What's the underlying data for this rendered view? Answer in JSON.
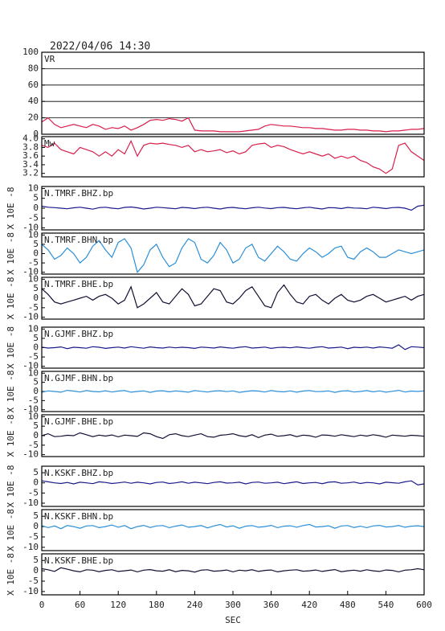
{
  "chart_data": {
    "type": "line",
    "title": "2022/04/06  14:30",
    "xlabel": "SEC",
    "x": [
      0,
      10,
      20,
      30,
      40,
      50,
      60,
      70,
      80,
      90,
      100,
      110,
      120,
      130,
      140,
      150,
      160,
      170,
      180,
      190,
      200,
      210,
      220,
      230,
      240,
      250,
      260,
      270,
      280,
      290,
      300,
      310,
      320,
      330,
      340,
      350,
      360,
      370,
      380,
      390,
      400,
      410,
      420,
      430,
      440,
      450,
      460,
      470,
      480,
      490,
      500,
      510,
      520,
      530,
      540,
      550,
      560,
      570,
      580,
      590,
      600
    ],
    "xlim": [
      0,
      600
    ],
    "xticks": [
      0,
      60,
      120,
      180,
      240,
      300,
      360,
      420,
      480,
      540,
      600
    ],
    "series": [
      {
        "name": "VR",
        "color": "#d81e4a",
        "ylim": [
          0,
          100
        ],
        "yticks": [
          0,
          20,
          40,
          60,
          80,
          100
        ],
        "grid": true,
        "values": [
          15,
          20,
          12,
          8,
          10,
          12,
          10,
          8,
          12,
          10,
          6,
          8,
          7,
          10,
          5,
          8,
          12,
          17,
          18,
          17,
          19,
          18,
          16,
          20,
          5,
          4,
          4,
          4,
          3,
          3,
          3,
          3,
          4,
          5,
          6,
          10,
          12,
          11,
          10,
          10,
          9,
          8,
          8,
          7,
          7,
          6,
          5,
          5,
          6,
          6,
          5,
          5,
          4,
          4,
          3,
          4,
          4,
          5,
          6,
          6,
          7
        ]
      },
      {
        "name": "Mw",
        "color": "#d81e4a",
        "ylim": [
          3.12,
          4.05
        ],
        "yticks": [
          3.2,
          3.4,
          3.6,
          3.8,
          {
            "value": 4,
            "label": "4.0"
          }
        ],
        "grid": false,
        "values": [
          3.85,
          3.8,
          3.9,
          3.75,
          3.7,
          3.65,
          3.8,
          3.75,
          3.7,
          3.6,
          3.7,
          3.6,
          3.75,
          3.65,
          3.95,
          3.6,
          3.85,
          3.9,
          3.88,
          3.9,
          3.87,
          3.85,
          3.8,
          3.85,
          3.7,
          3.75,
          3.7,
          3.72,
          3.75,
          3.68,
          3.72,
          3.65,
          3.7,
          3.85,
          3.88,
          3.9,
          3.8,
          3.85,
          3.82,
          3.75,
          3.7,
          3.65,
          3.7,
          3.65,
          3.6,
          3.65,
          3.55,
          3.6,
          3.55,
          3.6,
          3.5,
          3.45,
          3.35,
          3.3,
          3.2,
          3.3,
          3.85,
          3.9,
          3.7,
          3.6,
          3.5
        ]
      },
      {
        "name": "N.TMRF.BHZ.bp",
        "ylabel": "X 10E -8",
        "color": "#1a1a8c",
        "ylim": [
          -11,
          11
        ],
        "yticks": [
          -10,
          -5,
          0,
          5,
          10
        ],
        "grid": false,
        "values": [
          1,
          0.5,
          0.3,
          0,
          -0.3,
          0.2,
          0.5,
          0,
          -0.5,
          0.3,
          0.5,
          0,
          -0.3,
          0.4,
          0.6,
          0.2,
          -0.4,
          0,
          0.5,
          0.3,
          0,
          -0.3,
          0.4,
          0.2,
          -0.2,
          0.3,
          0.5,
          0,
          -0.4,
          0.2,
          0.4,
          0,
          -0.3,
          0.2,
          0.5,
          0.1,
          -0.2,
          0.3,
          0.4,
          0,
          -0.3,
          0.2,
          0.5,
          0,
          -0.4,
          0.3,
          0.2,
          -0.2,
          0.4,
          0.1,
          0,
          -0.3,
          0.5,
          0.2,
          -0.2,
          0.3,
          0.4,
          0,
          -1,
          1,
          1.5
        ]
      },
      {
        "name": "N.TMRF.BHN.bp",
        "ylabel": "X 10E -8",
        "color": "#2b8fd8",
        "ylim": [
          -11,
          11
        ],
        "yticks": [
          -10,
          -5,
          0,
          5,
          10
        ],
        "grid": false,
        "values": [
          5,
          2,
          -3,
          -1,
          3,
          0,
          -5,
          -2,
          4,
          7,
          2,
          -2,
          6,
          8,
          3,
          -10,
          -6,
          2,
          5,
          -2,
          -7,
          -5,
          3,
          8,
          6,
          -3,
          -5,
          -1,
          6,
          2,
          -5,
          -3,
          3,
          5,
          -2,
          -4,
          0,
          4,
          1,
          -3,
          -4,
          0,
          3,
          1,
          -2,
          0,
          3,
          4,
          -2,
          -3,
          1,
          3,
          1,
          -2,
          -2,
          0,
          2,
          1,
          0,
          1,
          2
        ]
      },
      {
        "name": "N.TMRF.BHE.bp",
        "ylabel": "X 10E -8",
        "color": "#111133",
        "ylim": [
          -11,
          11
        ],
        "yticks": [
          -10,
          -5,
          0,
          5,
          10
        ],
        "grid": false,
        "values": [
          5,
          2,
          -2,
          -3,
          -2,
          -1,
          0,
          1,
          -1,
          1,
          2,
          0,
          -3,
          -1,
          6,
          -5,
          -3,
          0,
          3,
          -2,
          -3,
          1,
          5,
          2,
          -4,
          -3,
          1,
          5,
          4,
          -2,
          -3,
          0,
          4,
          6,
          1,
          -4,
          -5,
          3,
          7,
          2,
          -2,
          -3,
          1,
          2,
          -1,
          -3,
          0,
          2,
          -1,
          -2,
          -1,
          1,
          2,
          0,
          -2,
          -1,
          0,
          1,
          -1,
          1,
          2
        ]
      },
      {
        "name": "N.GJMF.BHZ.bp",
        "ylabel": "X 10E -8",
        "color": "#1a1a8c",
        "ylim": [
          -11,
          11
        ],
        "yticks": [
          -10,
          -5,
          0,
          5,
          10
        ],
        "grid": false,
        "values": [
          0.3,
          -0.2,
          0,
          0.4,
          -0.5,
          0.2,
          0,
          -0.3,
          0.5,
          0.2,
          -0.4,
          0,
          0.3,
          -0.2,
          0.5,
          0.1,
          -0.3,
          0.4,
          0,
          -0.2,
          0.3,
          -0.1,
          0.2,
          0,
          -0.4,
          0.3,
          0.1,
          -0.2,
          0.4,
          0,
          -0.3,
          0.2,
          0.5,
          -0.2,
          0,
          0.3,
          -0.4,
          0.1,
          0.2,
          -0.1,
          0.4,
          0,
          -0.3,
          0.2,
          0.5,
          -0.2,
          0,
          0.3,
          -0.5,
          0.2,
          0,
          0.3,
          -0.2,
          0.4,
          0.1,
          -0.3,
          1.5,
          -1,
          0.5,
          0.3,
          0
        ]
      },
      {
        "name": "N.GJMF.BHN.bp",
        "ylabel": "X 10E -8",
        "color": "#2b8fd8",
        "ylim": [
          -11,
          11
        ],
        "yticks": [
          -10,
          -5,
          0,
          5,
          10
        ],
        "grid": false,
        "values": [
          -0.5,
          0.3,
          0,
          -0.4,
          0.6,
          0.2,
          -0.3,
          0.5,
          0,
          -0.2,
          0.4,
          -0.3,
          0.2,
          0.5,
          -0.4,
          0,
          0.3,
          -0.5,
          0.2,
          0.4,
          -0.2,
          0.3,
          0,
          -0.4,
          0.5,
          0.1,
          -0.3,
          0.2,
          0.4,
          -0.1,
          0.3,
          -0.5,
          0,
          0.4,
          0.2,
          -0.3,
          0.5,
          0,
          -0.2,
          0.3,
          -0.4,
          0.2,
          0.5,
          -0.1,
          0,
          0.3,
          -0.5,
          0.2,
          0.4,
          -0.3,
          0,
          0.5,
          -0.2,
          0.3,
          -0.4,
          0.1,
          0.6,
          -0.3,
          0.2,
          0,
          0.3
        ]
      },
      {
        "name": "N.GJMF.BHE.bp",
        "ylabel": "X 10E -8",
        "color": "#111133",
        "ylim": [
          -11,
          11
        ],
        "yticks": [
          -10,
          -5,
          0,
          5,
          10
        ],
        "grid": false,
        "values": [
          0,
          1,
          -0.5,
          -0.3,
          0.2,
          0,
          1.5,
          0.5,
          -0.5,
          0.3,
          -0.2,
          0.4,
          -0.6,
          0.3,
          0,
          -0.4,
          1.5,
          1,
          -0.5,
          -1.5,
          0.5,
          1,
          0,
          -0.5,
          0.3,
          1,
          -0.5,
          -0.8,
          0.2,
          0.5,
          1,
          0,
          -0.5,
          0.5,
          -1,
          0.3,
          0.8,
          -0.3,
          0,
          0.5,
          -0.5,
          0.3,
          0,
          -0.8,
          0.4,
          0.2,
          -0.3,
          0.5,
          0,
          -0.5,
          0.3,
          -0.2,
          0.5,
          0,
          -0.8,
          0.3,
          0,
          -0.3,
          0.2,
          0,
          -0.3
        ]
      },
      {
        "name": "N.KSKF.BHZ.bp",
        "ylabel": "X 10E -8",
        "color": "#1a1a8c",
        "ylim": [
          -11.6,
          8.2
        ],
        "yticks": [
          -10,
          -5,
          0,
          5
        ],
        "grid": false,
        "values": [
          1,
          0.5,
          0,
          -0.3,
          0.2,
          -0.5,
          0.3,
          0,
          -0.4,
          0.5,
          0.2,
          -0.3,
          0,
          0.4,
          -0.2,
          0.3,
          0,
          -0.5,
          0.2,
          0.4,
          -0.3,
          0,
          0.5,
          -0.2,
          0.3,
          0,
          -0.4,
          0.2,
          0.5,
          -0.1,
          0,
          0.3,
          -0.5,
          0.2,
          0.4,
          -0.2,
          0,
          0.3,
          -0.4,
          0.1,
          0.5,
          -0.3,
          0,
          0.2,
          -0.4,
          0.3,
          0.5,
          -0.2,
          0,
          0.4,
          -0.3,
          0.2,
          0,
          -0.5,
          0.3,
          0.1,
          -0.2,
          0.5,
          1,
          -1,
          -0.5
        ]
      },
      {
        "name": "N.KSKF.BHN.bp",
        "ylabel": "X 10E -8",
        "color": "#2b8fd8",
        "ylim": [
          -11.6,
          8.2
        ],
        "yticks": [
          -10,
          -5,
          0,
          5
        ],
        "grid": false,
        "values": [
          0.5,
          -0.5,
          0.3,
          -1,
          0.5,
          0,
          -0.8,
          0.3,
          0.5,
          -0.5,
          0,
          0.8,
          -0.3,
          0.5,
          -1,
          0,
          0.6,
          -0.4,
          0.3,
          0.5,
          -0.5,
          0.2,
          0.8,
          -0.3,
          0,
          0.5,
          -0.6,
          0.3,
          1,
          -0.2,
          0.4,
          -0.8,
          0.2,
          0.5,
          -0.3,
          0,
          0.6,
          -0.5,
          0.2,
          0.4,
          -0.3,
          0.5,
          1,
          -0.2,
          0,
          0.4,
          -0.8,
          0.3,
          0.5,
          -0.4,
          0.2,
          -0.5,
          0.3,
          0.6,
          -0.2,
          0,
          0.5,
          -0.3,
          0.2,
          0.4,
          0
        ]
      },
      {
        "name": "N.KSKF.BHE.bp",
        "ylabel": "X 10E -8",
        "color": "#111133",
        "ylim": [
          -11.6,
          8.2
        ],
        "yticks": [
          -10,
          -5,
          0,
          5
        ],
        "grid": false,
        "values": [
          1,
          0.5,
          -0.3,
          1.5,
          0.8,
          0,
          -0.5,
          0.5,
          0.3,
          -0.4,
          0.2,
          0.5,
          -0.3,
          0,
          0.4,
          -0.5,
          0.3,
          0.6,
          0,
          -0.2,
          0.5,
          -0.4,
          0.2,
          0,
          -0.6,
          0.3,
          0.5,
          -0.2,
          0,
          0.4,
          -0.5,
          0.3,
          0,
          0.5,
          -0.3,
          0.2,
          0.4,
          -0.5,
          0,
          0.3,
          0.5,
          -0.2,
          0,
          0.4,
          -0.3,
          0.2,
          0.6,
          -0.4,
          0,
          0.3,
          -0.2,
          0.5,
          0,
          -0.3,
          0.4,
          0.2,
          -0.5,
          0.3,
          0.5,
          1,
          0.5
        ]
      }
    ]
  }
}
